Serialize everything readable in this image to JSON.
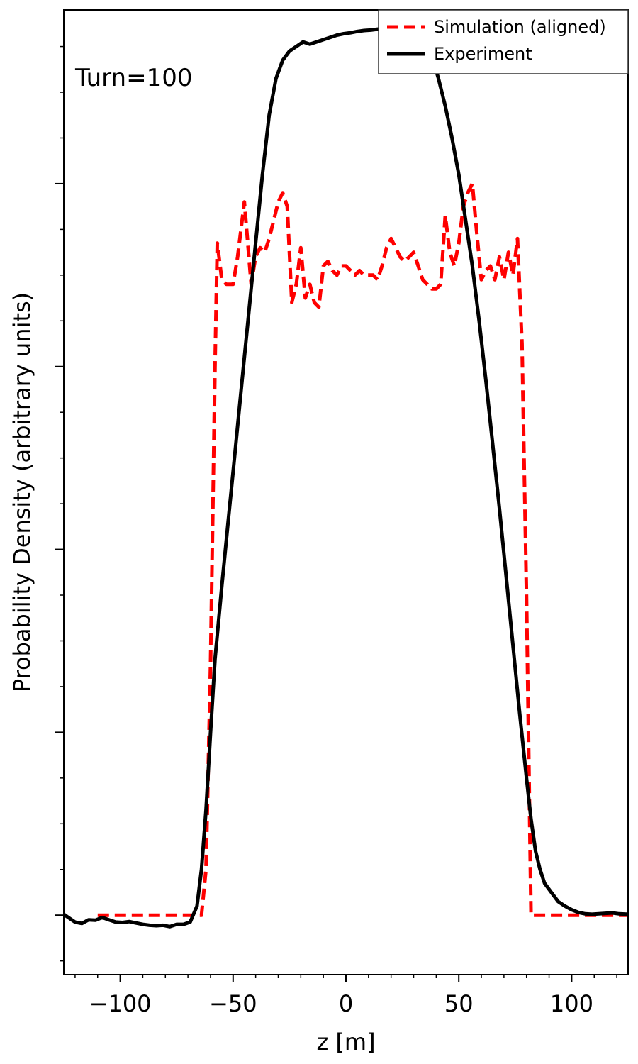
{
  "chart_data": {
    "type": "line",
    "xlabel": "z [m]",
    "ylabel": "Probability Density (arbitrary units)",
    "annotation": "Turn=100",
    "xlim": [
      -125,
      125
    ],
    "ylim": [
      -0.13,
      1.98
    ],
    "xticks": [
      -100,
      -50,
      0,
      50,
      100
    ],
    "x_tick_labels": [
      "−100",
      "−50",
      "0",
      "50",
      "100"
    ],
    "y_tick_labels_shown": false,
    "grid": false,
    "legend_position": "top-right",
    "series": [
      {
        "name": "Simulation (aligned)",
        "color": "#ff0000",
        "style": "dashed",
        "x": [
          -110,
          -64,
          -62,
          -60,
          -58,
          -57,
          -56,
          -55,
          -53,
          -50,
          -48,
          -45,
          -44,
          -42,
          -40,
          -38,
          -36,
          -34,
          -32,
          -30,
          -28,
          -26,
          -24,
          -22,
          -20,
          -18,
          -16,
          -14,
          -12,
          -10,
          -8,
          -6,
          -4,
          -2,
          0,
          2,
          4,
          6,
          8,
          10,
          12,
          14,
          16,
          18,
          20,
          22,
          24,
          26,
          28,
          30,
          32,
          34,
          36,
          38,
          40,
          42,
          44,
          46,
          48,
          50,
          52,
          54,
          56,
          58,
          60,
          62,
          64,
          66,
          68,
          70,
          72,
          74,
          76,
          78,
          80,
          82,
          83,
          84,
          86,
          88,
          125
        ],
        "y": [
          0.0,
          0.0,
          0.1,
          0.55,
          1.2,
          1.47,
          1.43,
          1.39,
          1.38,
          1.38,
          1.44,
          1.56,
          1.5,
          1.38,
          1.44,
          1.46,
          1.45,
          1.48,
          1.52,
          1.56,
          1.58,
          1.55,
          1.34,
          1.38,
          1.46,
          1.35,
          1.38,
          1.34,
          1.33,
          1.42,
          1.43,
          1.41,
          1.4,
          1.42,
          1.42,
          1.41,
          1.4,
          1.41,
          1.4,
          1.4,
          1.4,
          1.39,
          1.42,
          1.46,
          1.48,
          1.46,
          1.44,
          1.43,
          1.44,
          1.45,
          1.42,
          1.39,
          1.38,
          1.37,
          1.37,
          1.38,
          1.53,
          1.45,
          1.42,
          1.47,
          1.55,
          1.58,
          1.6,
          1.49,
          1.39,
          1.41,
          1.42,
          1.39,
          1.44,
          1.39,
          1.45,
          1.4,
          1.48,
          1.25,
          0.7,
          0.0,
          0.0,
          0.0,
          0.0,
          0.0,
          0.0
        ]
      },
      {
        "name": "Experiment",
        "color": "#000000",
        "style": "solid",
        "x": [
          -125,
          -123,
          -120,
          -117,
          -114,
          -111,
          -108,
          -105,
          -102,
          -99,
          -96,
          -93,
          -90,
          -87,
          -84,
          -81,
          -78,
          -75,
          -72,
          -69,
          -66,
          -64,
          -62,
          -60,
          -58,
          -55,
          -52,
          -49,
          -46,
          -43,
          -40,
          -37,
          -34,
          -31,
          -28,
          -25,
          -22,
          -19,
          -16,
          -13,
          -10,
          -7,
          -4,
          -1,
          2,
          5,
          8,
          11,
          14,
          17,
          20,
          23,
          26,
          29,
          32,
          35,
          38,
          41,
          44,
          47,
          50,
          53,
          56,
          59,
          62,
          65,
          68,
          71,
          74,
          77,
          80,
          82,
          84,
          86,
          88,
          91,
          94,
          97,
          100,
          103,
          106,
          109,
          112,
          115,
          118,
          121,
          125
        ],
        "y": [
          0.002,
          -0.005,
          -0.015,
          -0.018,
          -0.01,
          -0.011,
          -0.005,
          -0.01,
          -0.015,
          -0.016,
          -0.014,
          -0.017,
          -0.02,
          -0.022,
          -0.023,
          -0.022,
          -0.025,
          -0.02,
          -0.02,
          -0.015,
          0.02,
          0.1,
          0.23,
          0.4,
          0.56,
          0.72,
          0.87,
          1.02,
          1.17,
          1.32,
          1.47,
          1.62,
          1.75,
          1.83,
          1.87,
          1.89,
          1.9,
          1.91,
          1.905,
          1.91,
          1.915,
          1.92,
          1.925,
          1.928,
          1.93,
          1.933,
          1.935,
          1.936,
          1.938,
          1.939,
          1.94,
          1.945,
          1.945,
          1.945,
          1.94,
          1.92,
          1.88,
          1.83,
          1.77,
          1.7,
          1.62,
          1.52,
          1.42,
          1.3,
          1.17,
          1.03,
          0.89,
          0.74,
          0.59,
          0.44,
          0.3,
          0.21,
          0.14,
          0.1,
          0.07,
          0.05,
          0.03,
          0.02,
          0.012,
          0.006,
          0.003,
          0.002,
          0.003,
          0.004,
          0.005,
          0.003,
          0.002
        ]
      }
    ]
  }
}
